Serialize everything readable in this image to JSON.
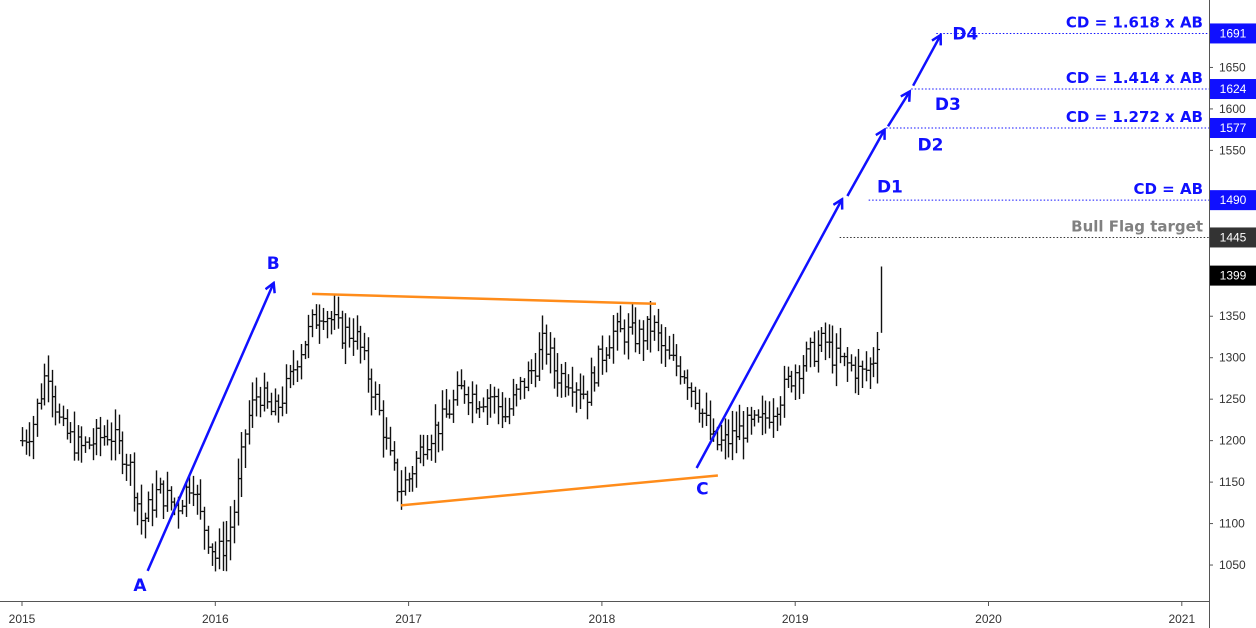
{
  "chart_data": {
    "type": "bar",
    "subtype": "ohlc-price-chart",
    "xlim": [
      2015.0,
      2021.15
    ],
    "ylim": [
      1000,
      1715
    ],
    "grid": false,
    "y_ticks": [
      1050,
      1100,
      1150,
      1200,
      1250,
      1300,
      1350,
      1550,
      1600,
      1650
    ],
    "x_ticks": [
      {
        "x": 2015,
        "label": "2015"
      },
      {
        "x": 2016,
        "label": "2016"
      },
      {
        "x": 2017,
        "label": "2017"
      },
      {
        "x": 2018,
        "label": "2018"
      },
      {
        "x": 2019,
        "label": "2019"
      },
      {
        "x": 2020,
        "label": "2020"
      },
      {
        "x": 2021,
        "label": "2021"
      }
    ],
    "price_path": [
      [
        2015.0,
        1200
      ],
      [
        2015.05,
        1215
      ],
      [
        2015.13,
        1290
      ],
      [
        2015.2,
        1215
      ],
      [
        2015.3,
        1190
      ],
      [
        2015.45,
        1210
      ],
      [
        2015.55,
        1175
      ],
      [
        2015.62,
        1100
      ],
      [
        2015.7,
        1140
      ],
      [
        2015.8,
        1120
      ],
      [
        2015.88,
        1155
      ],
      [
        2015.92,
        1110
      ],
      [
        2016.0,
        1060
      ],
      [
        2016.06,
        1080
      ],
      [
        2016.1,
        1120
      ],
      [
        2016.16,
        1220
      ],
      [
        2016.22,
        1260
      ],
      [
        2016.3,
        1230
      ],
      [
        2016.38,
        1270
      ],
      [
        2016.42,
        1300
      ],
      [
        2016.5,
        1340
      ],
      [
        2016.55,
        1360
      ],
      [
        2016.65,
        1330
      ],
      [
        2016.72,
        1330
      ],
      [
        2016.75,
        1310
      ],
      [
        2016.8,
        1270
      ],
      [
        2016.85,
        1230
      ],
      [
        2016.9,
        1180
      ],
      [
        2016.95,
        1140
      ],
      [
        2017.0,
        1155
      ],
      [
        2017.08,
        1200
      ],
      [
        2017.18,
        1225
      ],
      [
        2017.28,
        1265
      ],
      [
        2017.35,
        1250
      ],
      [
        2017.42,
        1255
      ],
      [
        2017.5,
        1230
      ],
      [
        2017.58,
        1265
      ],
      [
        2017.65,
        1290
      ],
      [
        2017.7,
        1320
      ],
      [
        2017.76,
        1280
      ],
      [
        2017.84,
        1275
      ],
      [
        2017.92,
        1255
      ],
      [
        2017.97,
        1290
      ],
      [
        2018.05,
        1330
      ],
      [
        2018.12,
        1330
      ],
      [
        2018.2,
        1325
      ],
      [
        2018.26,
        1340
      ],
      [
        2018.33,
        1300
      ],
      [
        2018.42,
        1285
      ],
      [
        2018.5,
        1245
      ],
      [
        2018.57,
        1200
      ],
      [
        2018.6,
        1195
      ],
      [
        2018.65,
        1200
      ],
      [
        2018.73,
        1215
      ],
      [
        2018.82,
        1220
      ],
      [
        2018.9,
        1245
      ],
      [
        2019.0,
        1285
      ],
      [
        2019.08,
        1305
      ],
      [
        2019.15,
        1320
      ],
      [
        2019.2,
        1300
      ],
      [
        2019.28,
        1290
      ],
      [
        2019.35,
        1280
      ],
      [
        2019.4,
        1295
      ],
      [
        2019.43,
        1330
      ],
      [
        2019.44,
        1345
      ]
    ],
    "last_bar": {
      "x": 2019.445,
      "high": 1410,
      "low": 1330
    },
    "triangle": {
      "color": "#ff8c1a",
      "upper": [
        [
          2016.5,
          1377
        ],
        [
          2018.28,
          1365
        ]
      ],
      "lower": [
        [
          2016.96,
          1122
        ],
        [
          2018.6,
          1158
        ]
      ]
    },
    "ab_arrow": {
      "from": [
        2015.65,
        1043
      ],
      "to": [
        2016.3,
        1389
      ]
    },
    "cd_arrows": [
      {
        "from": [
          2018.49,
          1167
        ],
        "to": [
          2019.24,
          1490
        ]
      },
      {
        "from": [
          2019.27,
          1495
        ],
        "to": [
          2019.46,
          1574
        ]
      },
      {
        "from": [
          2019.48,
          1579
        ],
        "to": [
          2019.59,
          1620
        ]
      },
      {
        "from": [
          2019.61,
          1628
        ],
        "to": [
          2019.75,
          1688
        ]
      }
    ],
    "points": [
      {
        "label": "A",
        "x": 2015.61,
        "y": 1025
      },
      {
        "label": "B",
        "x": 2016.3,
        "y": 1413
      },
      {
        "label": "C",
        "x": 2018.52,
        "y": 1141
      },
      {
        "label": "D1",
        "x": 2019.49,
        "y": 1505
      },
      {
        "label": "D2",
        "x": 2019.7,
        "y": 1556
      },
      {
        "label": "D3",
        "x": 2019.79,
        "y": 1605
      },
      {
        "label": "D4",
        "x": 2019.88,
        "y": 1690
      }
    ],
    "levels": [
      {
        "value": 1691,
        "badge": "1691",
        "text": "CD = 1.618 x AB",
        "color": "#1010ff",
        "x_start": 2019.73
      },
      {
        "value": 1624,
        "badge": "1624",
        "text": "CD = 1.414 x AB",
        "color": "#1010ff",
        "x_start": 2019.6
      },
      {
        "value": 1577,
        "badge": "1577",
        "text": "CD = 1.272 x AB",
        "color": "#1010ff",
        "x_start": 2019.47
      },
      {
        "value": 1490,
        "badge": "1490",
        "text": "CD = AB",
        "color": "#1010ff",
        "x_start": 2019.38
      },
      {
        "value": 1445,
        "badge": "1445",
        "text": "Bull Flag target",
        "color": "#808080",
        "badge_color": "#333333",
        "x_start": 2019.23
      }
    ],
    "current_price": {
      "value": 1399,
      "badge": "1399",
      "color": "#000000"
    },
    "colors": {
      "bars": "#111111",
      "arrows": "#1010ff",
      "triangle": "#ff8c1a"
    }
  }
}
